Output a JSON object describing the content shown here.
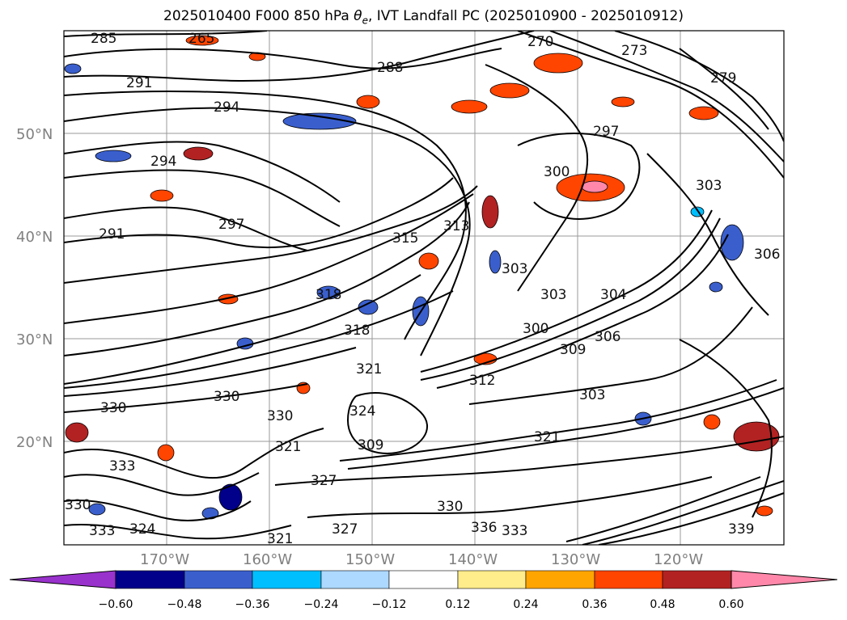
{
  "title_prefix": "2025010400 F000 850 hPa ",
  "title_theta": "θ",
  "title_sub": "e",
  "title_suffix": ", IVT Landfall PC (2025010900 - 2025010912)",
  "map": {
    "lat_labels": [
      "50°N",
      "40°N",
      "30°N",
      "20°N"
    ],
    "lon_labels": [
      "170°W",
      "160°W",
      "150°W",
      "140°W",
      "130°W",
      "120°W"
    ],
    "contour_labels": [
      "285",
      "265",
      "270",
      "273",
      "288",
      "291",
      "294",
      "279",
      "294",
      "300",
      "297",
      "303",
      "291",
      "297",
      "313",
      "318",
      "303",
      "315",
      "303",
      "304",
      "300",
      "306",
      "309",
      "318",
      "321",
      "321",
      "312",
      "303",
      "330",
      "330",
      "330",
      "324",
      "327",
      "309",
      "333",
      "330",
      "321",
      "336",
      "333",
      "330",
      "333",
      "321",
      "324",
      "327",
      "339",
      "306"
    ]
  },
  "colorbar": {
    "tick_labels": [
      "−0.60",
      "−0.48",
      "−0.36",
      "−0.24",
      "−0.12",
      "0.12",
      "0.24",
      "0.36",
      "0.48",
      "0.60"
    ],
    "colors": [
      "#9932cc",
      "#00008b",
      "#3a5fcd",
      "#00bfff",
      "#add8ff",
      "#ffffff",
      "#ffec8b",
      "#ffa500",
      "#ff4500",
      "#b22222",
      "#ff88aa"
    ]
  }
}
